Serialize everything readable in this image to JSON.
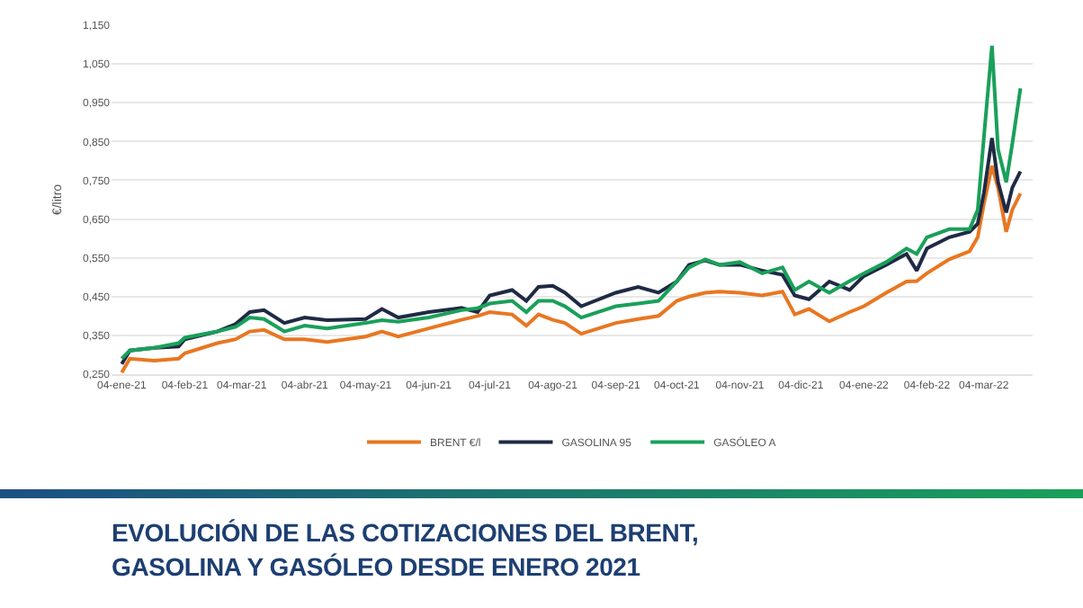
{
  "chart_data": {
    "type": "line",
    "title": "EVOLUCIÓN DE LAS COTIZACIONES DEL BRENT, GASOLINA Y GASÓLEO DESDE ENERO 2021",
    "ylabel": "€/litro",
    "x": [
      "2021-01-04",
      "2021-01-08",
      "2021-01-20",
      "2021-02-01",
      "2021-02-04",
      "2021-02-20",
      "2021-03-01",
      "2021-03-08",
      "2021-03-15",
      "2021-03-25",
      "2021-04-04",
      "2021-04-15",
      "2021-05-04",
      "2021-05-12",
      "2021-05-20",
      "2021-06-04",
      "2021-06-20",
      "2021-06-28",
      "2021-07-04",
      "2021-07-15",
      "2021-07-22",
      "2021-07-28",
      "2021-08-04",
      "2021-08-10",
      "2021-08-18",
      "2021-09-04",
      "2021-09-15",
      "2021-09-25",
      "2021-10-04",
      "2021-10-10",
      "2021-10-18",
      "2021-10-25",
      "2021-11-04",
      "2021-11-15",
      "2021-11-25",
      "2021-12-01",
      "2021-12-08",
      "2021-12-18",
      "2021-12-28",
      "2022-01-04",
      "2022-01-15",
      "2022-01-25",
      "2022-01-30",
      "2022-02-04",
      "2022-02-15",
      "2022-02-25",
      "2022-03-01",
      "2022-03-04",
      "2022-03-08",
      "2022-03-11",
      "2022-03-15",
      "2022-03-18",
      "2022-03-22"
    ],
    "series": [
      {
        "name": "BRENT €/l",
        "color": "#e87722",
        "values": [
          0.254,
          0.29,
          0.285,
          0.29,
          0.304,
          0.33,
          0.34,
          0.36,
          0.364,
          0.34,
          0.34,
          0.333,
          0.347,
          0.36,
          0.347,
          0.368,
          0.39,
          0.4,
          0.41,
          0.404,
          0.375,
          0.404,
          0.39,
          0.382,
          0.354,
          0.382,
          0.392,
          0.4,
          0.439,
          0.45,
          0.46,
          0.463,
          0.46,
          0.453,
          0.463,
          0.404,
          0.418,
          0.386,
          0.41,
          0.425,
          0.46,
          0.489,
          0.49,
          0.51,
          0.546,
          0.567,
          0.603,
          0.688,
          0.787,
          0.731,
          0.617,
          0.674,
          0.716
        ]
      },
      {
        "name": "GASOLINA 95",
        "color": "#1f2a44",
        "values": [
          0.276,
          0.311,
          0.318,
          0.321,
          0.34,
          0.36,
          0.379,
          0.41,
          0.415,
          0.382,
          0.396,
          0.389,
          0.392,
          0.418,
          0.396,
          0.41,
          0.421,
          0.41,
          0.453,
          0.467,
          0.439,
          0.475,
          0.478,
          0.46,
          0.425,
          0.46,
          0.475,
          0.46,
          0.489,
          0.532,
          0.543,
          0.532,
          0.532,
          0.517,
          0.506,
          0.453,
          0.443,
          0.489,
          0.467,
          0.503,
          0.532,
          0.56,
          0.517,
          0.574,
          0.603,
          0.617,
          0.638,
          0.716,
          0.859,
          0.745,
          0.667,
          0.731,
          0.773
        ]
      },
      {
        "name": "GASÓLEO A",
        "color": "#1aa05a",
        "values": [
          0.29,
          0.311,
          0.318,
          0.33,
          0.344,
          0.36,
          0.372,
          0.396,
          0.392,
          0.36,
          0.375,
          0.368,
          0.382,
          0.389,
          0.385,
          0.396,
          0.415,
          0.42,
          0.432,
          0.439,
          0.41,
          0.439,
          0.439,
          0.425,
          0.396,
          0.425,
          0.432,
          0.439,
          0.489,
          0.525,
          0.546,
          0.532,
          0.539,
          0.51,
          0.525,
          0.467,
          0.489,
          0.46,
          0.49,
          0.51,
          0.539,
          0.574,
          0.56,
          0.603,
          0.624,
          0.624,
          0.674,
          0.859,
          1.097,
          0.83,
          0.745,
          0.844,
          0.987
        ]
      }
    ],
    "xlim": [
      "2020-12-30",
      "2022-03-28"
    ],
    "xticks": [
      {
        "value": "2021-01-04",
        "label": "04-ene-21"
      },
      {
        "value": "2021-02-04",
        "label": "04-feb-21"
      },
      {
        "value": "2021-03-04",
        "label": "04-mar-21"
      },
      {
        "value": "2021-04-04",
        "label": "04-abr-21"
      },
      {
        "value": "2021-05-04",
        "label": "04-may-21"
      },
      {
        "value": "2021-06-04",
        "label": "04-jun-21"
      },
      {
        "value": "2021-07-04",
        "label": "04-jul-21"
      },
      {
        "value": "2021-08-04",
        "label": "04-ago-21"
      },
      {
        "value": "2021-09-04",
        "label": "04-sep-21"
      },
      {
        "value": "2021-10-04",
        "label": "04-oct-21"
      },
      {
        "value": "2021-11-04",
        "label": "04-nov-21"
      },
      {
        "value": "2021-12-04",
        "label": "04-dic-21"
      },
      {
        "value": "2022-01-04",
        "label": "04-ene-22"
      },
      {
        "value": "2022-02-04",
        "label": "04-feb-22"
      },
      {
        "value": "2022-03-04",
        "label": "04-mar-22"
      }
    ],
    "ylim": [
      0.25,
      1.15
    ],
    "yticks": [
      {
        "value": 0.25,
        "label": "0,250"
      },
      {
        "value": 0.35,
        "label": "0,350"
      },
      {
        "value": 0.45,
        "label": "0,450"
      },
      {
        "value": 0.55,
        "label": "0,550"
      },
      {
        "value": 0.65,
        "label": "0,650"
      },
      {
        "value": 0.75,
        "label": "0,750"
      },
      {
        "value": 0.85,
        "label": "0,850"
      },
      {
        "value": 0.95,
        "label": "0,950"
      },
      {
        "value": 1.05,
        "label": "1,050"
      },
      {
        "value": 1.15,
        "label": "1,150"
      }
    ],
    "grid": "y",
    "legend": "bottom",
    "marker": "none",
    "line_style": "solid"
  }
}
